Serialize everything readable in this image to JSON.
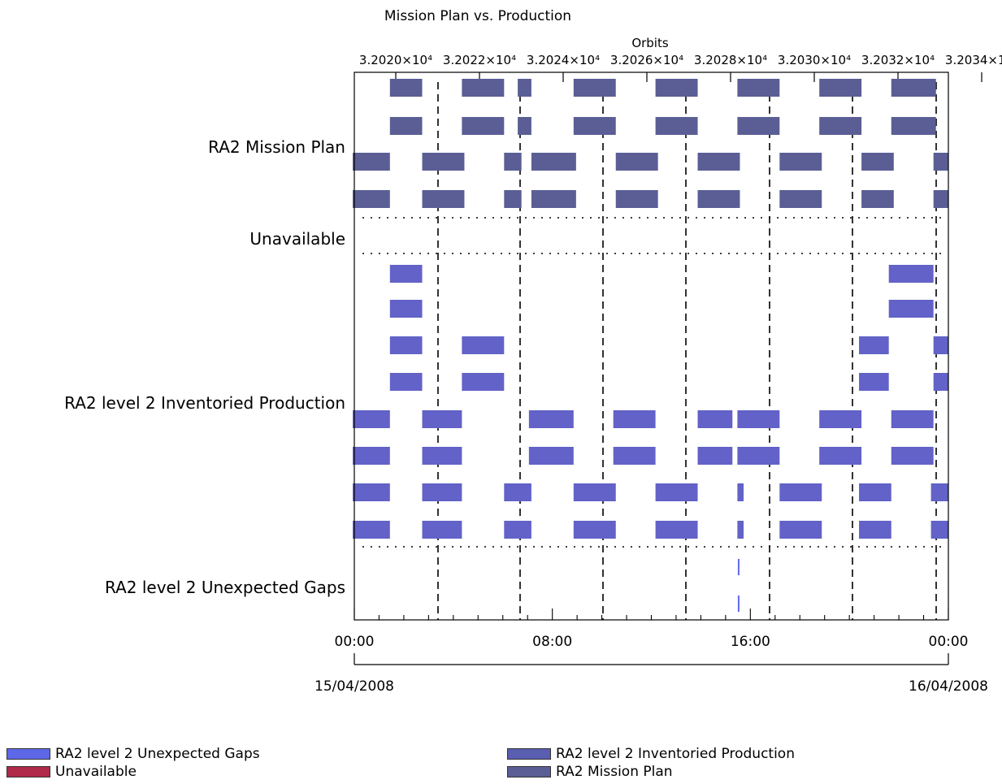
{
  "chart_data": {
    "type": "gantt-timeline",
    "title": "Mission Plan vs. Production",
    "top_axis": {
      "label": "Orbits",
      "ticks": [
        "3.2020×10⁴",
        "3.2022×10⁴",
        "3.2024×10⁴",
        "3.2026×10⁴",
        "3.2028×10⁴",
        "3.2030×10⁴",
        "3.2032×10⁴",
        "3.2034×10⁴"
      ]
    },
    "bottom_axis": {
      "ticks": [
        "00:00",
        "08:00",
        "16:00",
        "00:00"
      ],
      "dates": [
        "15/04/2008",
        "16/04/2008"
      ],
      "range_hours": [
        0,
        24
      ]
    },
    "rows": [
      {
        "label": "RA2 Mission Plan",
        "color": "#5a5e95",
        "type": "mission",
        "segments": [
          [
            1.5,
            2.8
          ],
          [
            4.4,
            6.1
          ],
          [
            6.65,
            7.2
          ],
          [
            8.9,
            10.6
          ],
          [
            12.2,
            13.9
          ],
          [
            15.5,
            17.2
          ],
          [
            18.8,
            20.5
          ],
          [
            21.7,
            23.5
          ],
          [
            0,
            1.5
          ],
          [
            2.8,
            4.5
          ],
          [
            6.1,
            6.8
          ],
          [
            7.2,
            9.0
          ],
          [
            10.6,
            12.3
          ],
          [
            13.9,
            15.6
          ],
          [
            17.2,
            18.9
          ],
          [
            20.5,
            21.8
          ],
          [
            23.4,
            24
          ]
        ]
      },
      {
        "label": "Unavailable",
        "color": "#b02a4a",
        "type": "unavailable",
        "segments": []
      },
      {
        "label": "RA2 level 2 Inventoried Production",
        "color": "#6262c8",
        "type": "production",
        "segments": [
          [
            1.5,
            2.8
          ],
          [
            21.6,
            23.4
          ],
          [
            1.5,
            2.8
          ],
          [
            4.4,
            6.1
          ],
          [
            20.4,
            21.6
          ],
          [
            23.4,
            24
          ],
          [
            0,
            1.5
          ],
          [
            2.8,
            4.4
          ],
          [
            7.1,
            8.9
          ],
          [
            10.5,
            12.2
          ],
          [
            13.9,
            15.3
          ],
          [
            15.5,
            17.2
          ],
          [
            18.8,
            20.5
          ],
          [
            21.7,
            23.4
          ],
          [
            0,
            1.5
          ],
          [
            2.8,
            4.4
          ],
          [
            6.1,
            7.2
          ],
          [
            8.9,
            10.6
          ],
          [
            12.2,
            13.9
          ],
          [
            15.5,
            15.75
          ],
          [
            17.2,
            18.9
          ],
          [
            20.4,
            21.7
          ],
          [
            23.3,
            24
          ]
        ]
      },
      {
        "label": "RA2 level 2 Unexpected Gaps",
        "color": "#5d68e8",
        "type": "gaps",
        "segments": [
          [
            15.55,
            15.6
          ]
        ]
      }
    ],
    "legend": [
      {
        "label": "RA2 level 2 Unexpected Gaps",
        "color": "#5d68e8"
      },
      {
        "label": "Unavailable",
        "color": "#b02a4a"
      },
      {
        "label": "RA2 level 2 Inventoried Production",
        "color": "#5a5eb0"
      },
      {
        "label": "RA2 Mission Plan",
        "color": "#5a5e95"
      }
    ]
  }
}
